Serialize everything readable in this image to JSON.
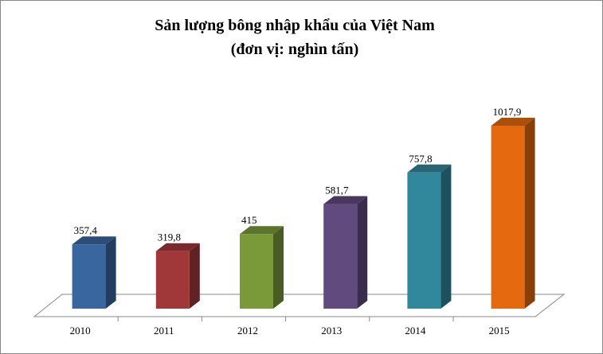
{
  "chart_data": {
    "type": "bar3d",
    "title": "Sản lượng bông nhập khẩu của Việt Nam",
    "subtitle": "(đơn vị: nghìn tấn)",
    "categories": [
      "2010",
      "2011",
      "2012",
      "2013",
      "2014",
      "2015"
    ],
    "values": [
      357.4,
      319.8,
      415,
      581.7,
      757.8,
      1017.9
    ],
    "value_labels": [
      "357,4",
      "319,8",
      "415",
      "581,7",
      "757,8",
      "1017,9"
    ],
    "colors": [
      "#3a66a0",
      "#a0383a",
      "#7a9a3a",
      "#604a7e",
      "#31879c",
      "#e5690f"
    ]
  }
}
